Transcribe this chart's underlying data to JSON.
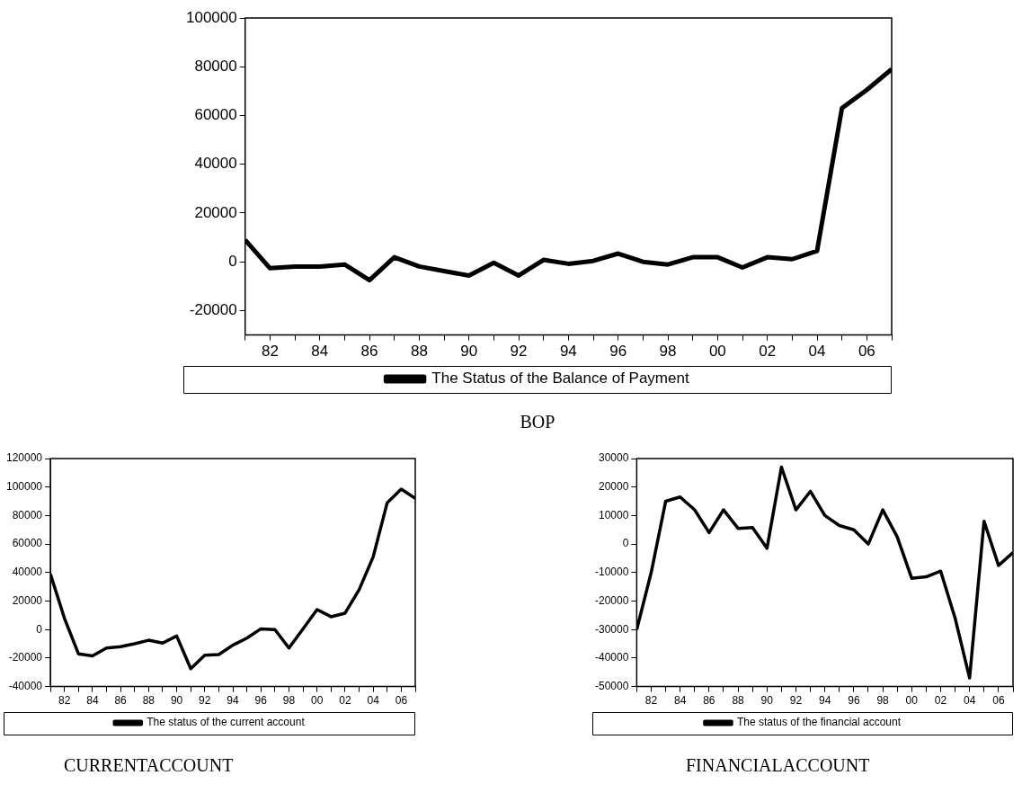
{
  "chart_data": [
    {
      "type": "line",
      "x": [
        1981,
        1982,
        1983,
        1984,
        1985,
        1986,
        1987,
        1988,
        1989,
        1990,
        1991,
        1992,
        1993,
        1994,
        1995,
        1996,
        1997,
        1998,
        1999,
        2000,
        2001,
        2002,
        2003,
        2004,
        2005,
        2006,
        2007
      ],
      "series": [
        {
          "name": "The Status of the Balance of Payment",
          "color": "#000000",
          "values": [
            9000,
            -2600,
            -1900,
            -1900,
            -1100,
            -7500,
            1900,
            -1900,
            -3800,
            -5600,
            -400,
            -5600,
            800,
            -800,
            400,
            3400,
            0,
            -1100,
            1900,
            1900,
            -2300,
            1900,
            1100,
            4500,
            63000,
            70500,
            79000
          ]
        }
      ],
      "xlim": [
        1981,
        2007
      ],
      "xticks": [
        {
          "value": 1981,
          "label": null
        },
        {
          "value": 1982,
          "label": "82"
        },
        {
          "value": 1983,
          "label": null
        },
        {
          "value": 1984,
          "label": "84"
        },
        {
          "value": 1985,
          "label": null
        },
        {
          "value": 1986,
          "label": "86"
        },
        {
          "value": 1987,
          "label": null
        },
        {
          "value": 1988,
          "label": "88"
        },
        {
          "value": 1989,
          "label": null
        },
        {
          "value": 1990,
          "label": "90"
        },
        {
          "value": 1991,
          "label": null
        },
        {
          "value": 1992,
          "label": "92"
        },
        {
          "value": 1993,
          "label": null
        },
        {
          "value": 1994,
          "label": "94"
        },
        {
          "value": 1995,
          "label": null
        },
        {
          "value": 1996,
          "label": "96"
        },
        {
          "value": 1997,
          "label": null
        },
        {
          "value": 1998,
          "label": "98"
        },
        {
          "value": 1999,
          "label": null
        },
        {
          "value": 2000,
          "label": "00"
        },
        {
          "value": 2001,
          "label": null
        },
        {
          "value": 2002,
          "label": "02"
        },
        {
          "value": 2003,
          "label": null
        },
        {
          "value": 2004,
          "label": "04"
        },
        {
          "value": 2005,
          "label": null
        },
        {
          "value": 2006,
          "label": "06"
        },
        {
          "value": 2007,
          "label": null
        }
      ],
      "ylim": [
        -30000,
        100000
      ],
      "yticks": [
        -20000,
        0,
        20000,
        40000,
        60000,
        80000,
        100000
      ],
      "grid": false,
      "legend": "bottom",
      "marker": "none",
      "line_style": "solid",
      "annotations": [
        "BOP"
      ]
    },
    {
      "type": "line",
      "x": [
        1981,
        1982,
        1983,
        1984,
        1985,
        1986,
        1987,
        1988,
        1989,
        1990,
        1991,
        1992,
        1993,
        1994,
        1995,
        1996,
        1997,
        1998,
        1999,
        2000,
        2001,
        2002,
        2003,
        2004,
        2005,
        2006,
        2007
      ],
      "series": [
        {
          "name": "The status of the current account",
          "color": "#000000",
          "values": [
            39000,
            8000,
            -17000,
            -18500,
            -13000,
            -12000,
            -10000,
            -7500,
            -9500,
            -4500,
            -27500,
            -18000,
            -17500,
            -11000,
            -6000,
            500,
            0,
            -13000,
            500,
            14000,
            9000,
            11500,
            28000,
            51000,
            89000,
            98500,
            92000
          ]
        }
      ],
      "xlim": [
        1981,
        2007
      ],
      "xticks": [
        {
          "value": 1981,
          "label": null
        },
        {
          "value": 1982,
          "label": "82"
        },
        {
          "value": 1983,
          "label": null
        },
        {
          "value": 1984,
          "label": "84"
        },
        {
          "value": 1985,
          "label": null
        },
        {
          "value": 1986,
          "label": "86"
        },
        {
          "value": 1987,
          "label": null
        },
        {
          "value": 1988,
          "label": "88"
        },
        {
          "value": 1989,
          "label": null
        },
        {
          "value": 1990,
          "label": "90"
        },
        {
          "value": 1991,
          "label": null
        },
        {
          "value": 1992,
          "label": "92"
        },
        {
          "value": 1993,
          "label": null
        },
        {
          "value": 1994,
          "label": "94"
        },
        {
          "value": 1995,
          "label": null
        },
        {
          "value": 1996,
          "label": "96"
        },
        {
          "value": 1997,
          "label": null
        },
        {
          "value": 1998,
          "label": "98"
        },
        {
          "value": 1999,
          "label": null
        },
        {
          "value": 2000,
          "label": "00"
        },
        {
          "value": 2001,
          "label": null
        },
        {
          "value": 2002,
          "label": "02"
        },
        {
          "value": 2003,
          "label": null
        },
        {
          "value": 2004,
          "label": "04"
        },
        {
          "value": 2005,
          "label": null
        },
        {
          "value": 2006,
          "label": "06"
        },
        {
          "value": 2007,
          "label": null
        }
      ],
      "ylim": [
        -40000,
        120000
      ],
      "yticks": [
        -40000,
        -20000,
        0,
        20000,
        40000,
        60000,
        80000,
        100000,
        120000
      ],
      "grid": false,
      "legend": "bottom",
      "marker": "none",
      "line_style": "solid",
      "annotations": [
        "CURRENTACCOUNT"
      ]
    },
    {
      "type": "line",
      "x": [
        1981,
        1982,
        1983,
        1984,
        1985,
        1986,
        1987,
        1988,
        1989,
        1990,
        1991,
        1992,
        1993,
        1994,
        1995,
        1996,
        1997,
        1998,
        1999,
        2000,
        2001,
        2002,
        2003,
        2004,
        2005,
        2006,
        2007
      ],
      "series": [
        {
          "name": "The status of the financial account",
          "color": "#000000",
          "values": [
            -30000,
            -10000,
            15000,
            16500,
            12000,
            4000,
            12000,
            5500,
            5800,
            -1500,
            27000,
            12000,
            18500,
            10000,
            6500,
            5000,
            0,
            12000,
            2500,
            -12000,
            -11500,
            -9500,
            -26000,
            -47000,
            8000,
            -7500,
            -3000
          ]
        }
      ],
      "xlim": [
        1981,
        2007
      ],
      "xticks": [
        {
          "value": 1981,
          "label": null
        },
        {
          "value": 1982,
          "label": "82"
        },
        {
          "value": 1983,
          "label": null
        },
        {
          "value": 1984,
          "label": "84"
        },
        {
          "value": 1985,
          "label": null
        },
        {
          "value": 1986,
          "label": "86"
        },
        {
          "value": 1987,
          "label": null
        },
        {
          "value": 1988,
          "label": "88"
        },
        {
          "value": 1989,
          "label": null
        },
        {
          "value": 1990,
          "label": "90"
        },
        {
          "value": 1991,
          "label": null
        },
        {
          "value": 1992,
          "label": "92"
        },
        {
          "value": 1993,
          "label": null
        },
        {
          "value": 1994,
          "label": "94"
        },
        {
          "value": 1995,
          "label": null
        },
        {
          "value": 1996,
          "label": "96"
        },
        {
          "value": 1997,
          "label": null
        },
        {
          "value": 1998,
          "label": "98"
        },
        {
          "value": 1999,
          "label": null
        },
        {
          "value": 2000,
          "label": "00"
        },
        {
          "value": 2001,
          "label": null
        },
        {
          "value": 2002,
          "label": "02"
        },
        {
          "value": 2003,
          "label": null
        },
        {
          "value": 2004,
          "label": "04"
        },
        {
          "value": 2005,
          "label": null
        },
        {
          "value": 2006,
          "label": "06"
        },
        {
          "value": 2007,
          "label": null
        }
      ],
      "ylim": [
        -50000,
        30000
      ],
      "yticks": [
        -50000,
        -40000,
        -30000,
        -20000,
        -10000,
        0,
        10000,
        20000,
        30000
      ],
      "grid": false,
      "legend": "bottom",
      "marker": "none",
      "line_style": "solid",
      "annotations": [
        "FINANCIALACCOUNT"
      ]
    }
  ]
}
